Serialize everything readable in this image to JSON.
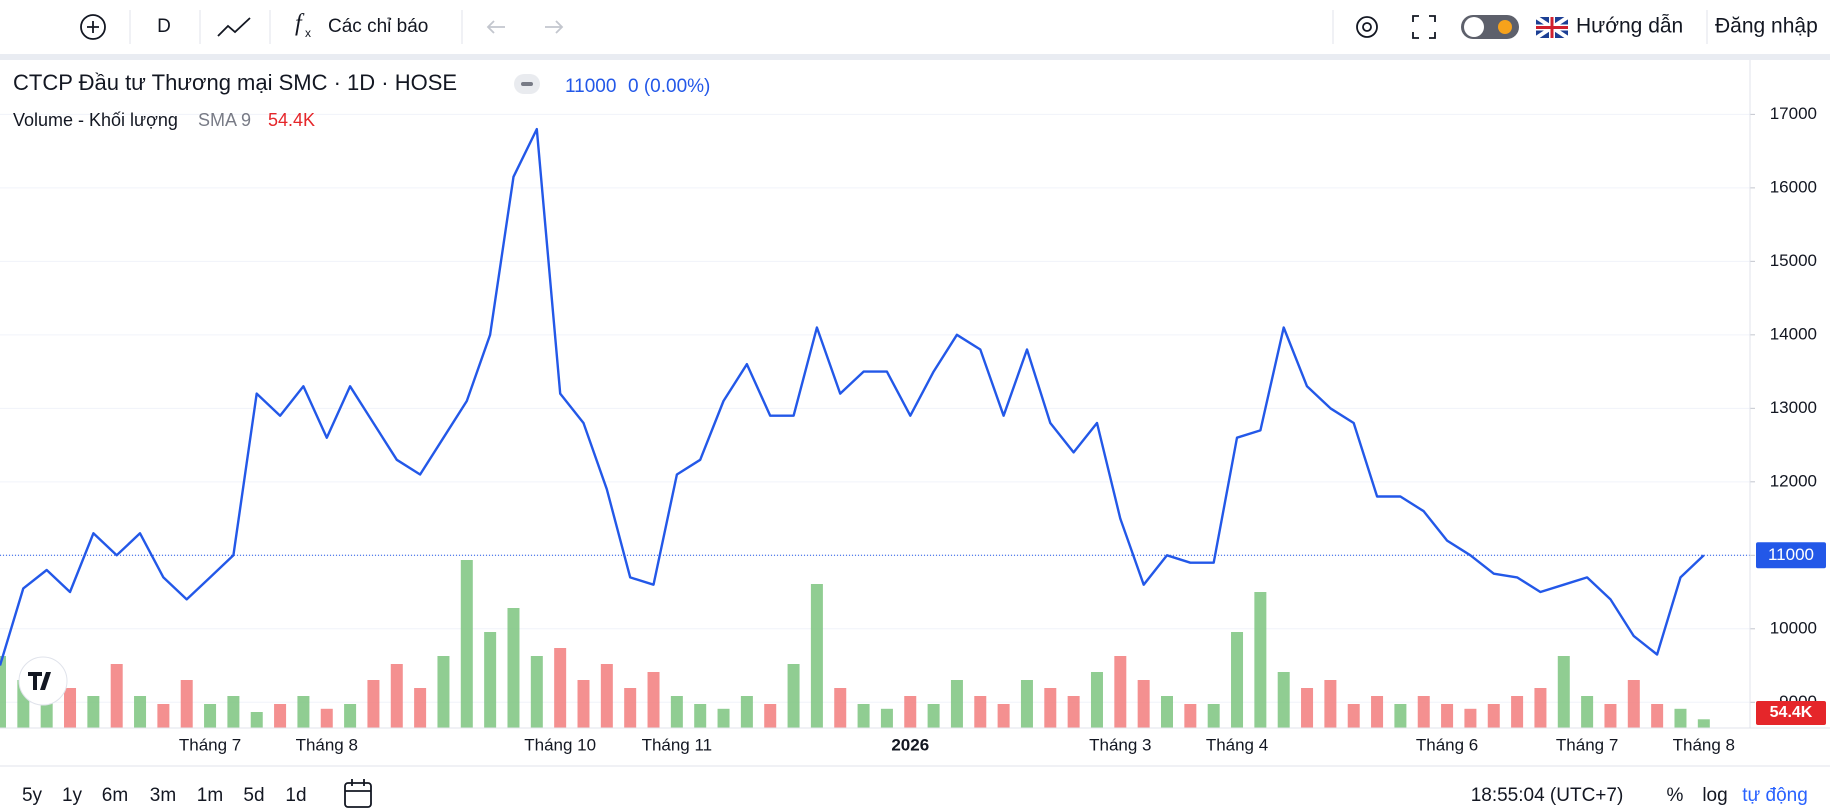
{
  "toolbar": {
    "interval": "D",
    "indicators": "Các chỉ báo",
    "guide": "Hướng dẫn",
    "login": "Đăng nhập"
  },
  "chart_data": {
    "type": "line",
    "title": "CTCP Đầu tư Thương mại SMC · 1D · HOSE",
    "last_value": 11000,
    "change": "0 (0.00%)",
    "color": "#2358e8",
    "categories": [
      null,
      null,
      null,
      null,
      null,
      null,
      null,
      null,
      null,
      "Tháng 7",
      null,
      null,
      null,
      null,
      "Tháng 8",
      null,
      null,
      null,
      null,
      null,
      null,
      null,
      null,
      null,
      "Tháng 10",
      null,
      null,
      null,
      null,
      "Tháng 11",
      null,
      null,
      null,
      null,
      null,
      null,
      null,
      null,
      null,
      "2026",
      null,
      null,
      null,
      null,
      null,
      null,
      null,
      null,
      "Tháng 3",
      null,
      null,
      null,
      null,
      "Tháng 4",
      null,
      null,
      null,
      null,
      null,
      null,
      null,
      null,
      "Tháng 6",
      null,
      null,
      null,
      null,
      null,
      "Tháng 7",
      null,
      null,
      null,
      null,
      "Tháng 8"
    ],
    "values": [
      9500,
      10550,
      10800,
      10500,
      11300,
      11000,
      11300,
      10700,
      10400,
      10700,
      11000,
      13200,
      12900,
      13300,
      12600,
      13300,
      12800,
      12300,
      12100,
      12600,
      13100,
      14000,
      16150,
      16800,
      13200,
      12800,
      11900,
      10700,
      10600,
      12100,
      12300,
      13100,
      13600,
      12900,
      12900,
      14100,
      13200,
      13500,
      13500,
      12900,
      13500,
      14000,
      13800,
      12900,
      13800,
      12800,
      12400,
      12800,
      11500,
      10600,
      11000,
      10900,
      10900,
      12600,
      12700,
      14100,
      13300,
      13000,
      12800,
      11800,
      11800,
      11600,
      11200,
      11000,
      10750,
      10700,
      10500,
      10600,
      10700,
      10400,
      9900,
      9650,
      10700,
      11000
    ],
    "ylim": [
      8650,
      17740
    ],
    "yticks": [
      9000,
      10000,
      11000,
      12000,
      13000,
      14000,
      15000,
      16000,
      17000
    ],
    "grid": true,
    "volume": {
      "name": "Volume - Khối lượng",
      "indicator": "SMA 9",
      "up_color": "#7cc47f",
      "down_color": "#f27c7c",
      "values": [
        450000,
        300000,
        350000,
        250000,
        200000,
        400000,
        200000,
        150000,
        300000,
        150000,
        200000,
        100000,
        150000,
        200000,
        120000,
        150000,
        300000,
        400000,
        250000,
        450000,
        1050000,
        600000,
        750000,
        450000,
        500000,
        300000,
        400000,
        250000,
        350000,
        200000,
        150000,
        120000,
        200000,
        150000,
        400000,
        900000,
        250000,
        150000,
        120000,
        200000,
        150000,
        300000,
        200000,
        150000,
        300000,
        250000,
        200000,
        350000,
        450000,
        300000,
        200000,
        150000,
        150000,
        600000,
        850000,
        350000,
        250000,
        300000,
        150000,
        200000,
        150000,
        200000,
        150000,
        120000,
        150000,
        200000,
        250000,
        450000,
        200000,
        150000,
        300000,
        150000,
        120000,
        54400
      ],
      "value_labels": [
        null,
        null,
        null,
        null,
        null,
        null,
        null,
        null,
        null,
        null,
        null,
        null,
        null,
        null,
        null,
        null,
        null,
        null,
        null,
        null,
        null,
        null,
        null,
        null,
        null,
        null,
        null,
        null,
        null,
        null,
        null,
        null,
        null,
        null,
        null,
        null,
        null,
        null,
        null,
        null,
        null,
        null,
        null,
        null,
        null,
        null,
        null,
        null,
        null,
        null,
        null,
        null,
        null,
        null,
        null,
        null,
        null,
        null,
        null,
        null,
        null,
        null,
        null,
        null,
        null,
        null,
        null,
        null,
        null,
        null,
        null,
        null,
        null,
        "54.4K"
      ]
    }
  },
  "footer": {
    "ranges": [
      "5y",
      "1y",
      "6m",
      "3m",
      "1m",
      "5d",
      "1d"
    ],
    "time": "18:55:04 (UTC+7)",
    "scale_options": [
      "%",
      "log",
      "tự động"
    ]
  }
}
